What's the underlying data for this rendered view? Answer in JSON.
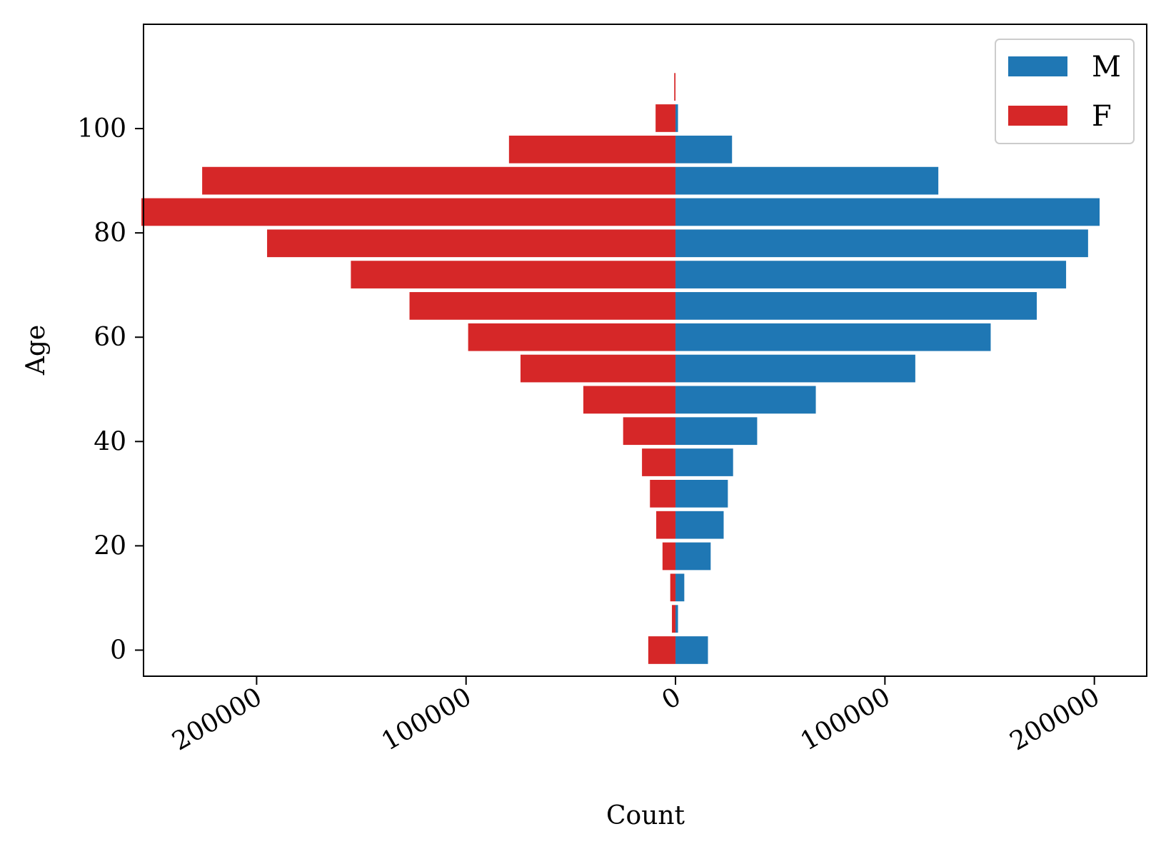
{
  "chart_data": {
    "type": "bar",
    "orientation": "horizontal",
    "xlabel": "Count",
    "ylabel": "Age",
    "xlim": [
      -254000,
      225000
    ],
    "ylim": [
      -5,
      120
    ],
    "xticks": [
      -200000,
      -100000,
      0,
      100000,
      200000
    ],
    "xtick_labels": [
      "200000",
      "100000",
      "0",
      "100000",
      "200000"
    ],
    "yticks": [
      0,
      20,
      40,
      60,
      80,
      100
    ],
    "ytick_labels": [
      "0",
      "20",
      "40",
      "60",
      "80",
      "100"
    ],
    "age_bins": [
      0,
      6,
      12,
      18,
      24,
      30,
      36,
      42,
      48,
      54,
      60,
      66,
      72,
      78,
      84,
      90,
      96,
      102,
      108
    ],
    "series": [
      {
        "name": "M",
        "color": "#1f77b4",
        "direction": "right",
        "values": [
          15500,
          1200,
          4200,
          16800,
          23000,
          25000,
          27500,
          39000,
          67000,
          114500,
          150500,
          172500,
          186500,
          197000,
          202500,
          125500,
          27000,
          1200,
          0
        ]
      },
      {
        "name": "F",
        "color": "#d62728",
        "direction": "left",
        "values": [
          13000,
          1700,
          2500,
          6200,
          9200,
          12200,
          16000,
          25000,
          44000,
          74000,
          99000,
          127000,
          155000,
          195000,
          255000,
          226000,
          79500,
          9500,
          600
        ]
      }
    ],
    "legend": {
      "position": "top-right",
      "entries": [
        "M",
        "F"
      ]
    },
    "grid": false
  }
}
